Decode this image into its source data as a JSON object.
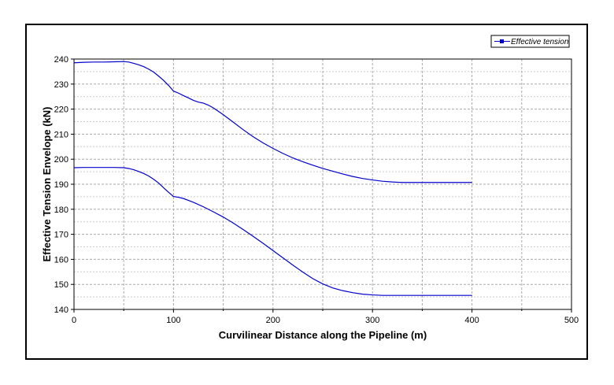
{
  "chart_data": {
    "type": "line",
    "title": "",
    "xlabel": "Curvilinear Distance along the Pipeline (m)",
    "ylabel": "Effective Tension Envelope (kN)",
    "xlim": [
      0,
      500
    ],
    "ylim": [
      140,
      240
    ],
    "x_ticks": [
      "0",
      "100",
      "200",
      "300",
      "400",
      "500"
    ],
    "y_ticks": [
      "140",
      "150",
      "160",
      "170",
      "180",
      "190",
      "200",
      "210",
      "220",
      "230",
      "240"
    ],
    "grid": true,
    "legend_position": "top-right",
    "legend": [
      "Effective tension"
    ],
    "color": "#0000cc",
    "series": [
      {
        "name": "Effective tension",
        "role": "max",
        "x": [
          0,
          10,
          20,
          30,
          40,
          50,
          55,
          60,
          65,
          70,
          75,
          80,
          85,
          90,
          95,
          100,
          105,
          110,
          115,
          120,
          125,
          130,
          135,
          140,
          150,
          160,
          170,
          180,
          190,
          200,
          210,
          220,
          230,
          240,
          250,
          260,
          270,
          280,
          290,
          300,
          310,
          320,
          330,
          340,
          360,
          380,
          400
        ],
        "y": [
          238.5,
          238.7,
          238.8,
          238.8,
          238.9,
          239.0,
          238.8,
          238.3,
          237.7,
          237.0,
          236.0,
          234.8,
          233.2,
          231.5,
          229.5,
          227.2,
          226.4,
          225.4,
          224.5,
          223.5,
          222.8,
          222.4,
          221.6,
          220.5,
          217.8,
          214.8,
          211.8,
          209.0,
          206.5,
          204.3,
          202.3,
          200.5,
          199.0,
          197.6,
          196.3,
          195.2,
          194.1,
          193.1,
          192.3,
          191.7,
          191.2,
          190.9,
          190.7,
          190.7,
          190.7,
          190.7,
          190.7
        ]
      },
      {
        "name": "Effective tension",
        "role": "min",
        "x": [
          0,
          10,
          20,
          30,
          40,
          50,
          55,
          60,
          65,
          70,
          75,
          80,
          85,
          90,
          95,
          100,
          105,
          110,
          120,
          130,
          140,
          150,
          160,
          170,
          180,
          190,
          200,
          210,
          220,
          230,
          240,
          250,
          260,
          270,
          280,
          290,
          300,
          310,
          320,
          340,
          360,
          380,
          400
        ],
        "y": [
          196.6,
          196.7,
          196.7,
          196.7,
          196.7,
          196.6,
          196.3,
          195.8,
          195.1,
          194.3,
          193.3,
          192.0,
          190.5,
          188.6,
          186.8,
          185.1,
          184.8,
          184.3,
          182.8,
          181.0,
          179.0,
          176.9,
          174.5,
          171.9,
          169.2,
          166.4,
          163.5,
          160.6,
          157.7,
          154.9,
          152.3,
          150.2,
          148.6,
          147.5,
          146.7,
          146.1,
          145.8,
          145.6,
          145.6,
          145.6,
          145.6,
          145.6,
          145.6
        ]
      }
    ]
  }
}
